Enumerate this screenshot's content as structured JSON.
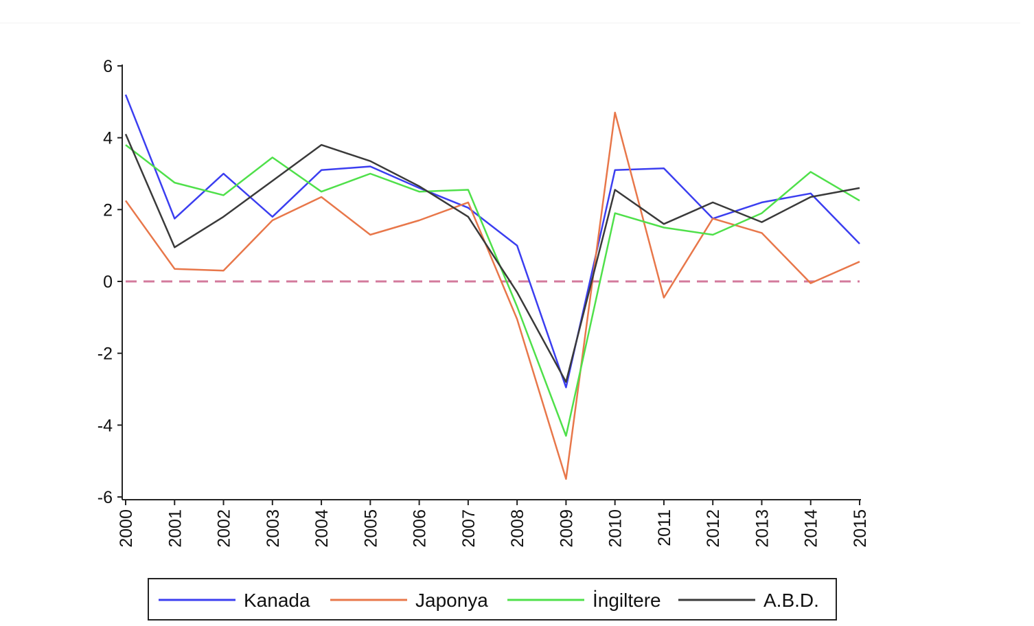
{
  "chart_data": {
    "type": "line",
    "title": "",
    "xlabel": "",
    "ylabel": "",
    "x": [
      "2000",
      "2001",
      "2002",
      "2003",
      "2004",
      "2005",
      "2006",
      "2007",
      "2008",
      "2009",
      "2010",
      "2011",
      "2012",
      "2013",
      "2014",
      "2015"
    ],
    "ylim": [
      -6,
      6
    ],
    "yticks": [
      6,
      4,
      2,
      0,
      -2,
      -4,
      -6
    ],
    "yticklabels": [
      "6",
      "4",
      "2",
      "0",
      "-2",
      "-4",
      "-6"
    ],
    "reference_line": {
      "y": 0,
      "style": "dashed",
      "color": "#d37a9c"
    },
    "legend_position": "bottom",
    "series": [
      {
        "name": "Kanada",
        "color": "#3b3ef0",
        "values": [
          5.2,
          1.75,
          3.0,
          1.8,
          3.1,
          3.2,
          2.6,
          2.05,
          1.0,
          -2.95,
          3.1,
          3.15,
          1.75,
          2.2,
          2.45,
          1.05
        ]
      },
      {
        "name": "Japonya",
        "color": "#e8774a",
        "values": [
          2.25,
          0.35,
          0.3,
          1.7,
          2.35,
          1.3,
          1.7,
          2.2,
          -1.05,
          -5.5,
          4.7,
          -0.45,
          1.75,
          1.35,
          -0.05,
          0.55
        ]
      },
      {
        "name": "İngiltere",
        "color": "#4fe04a",
        "values": [
          3.8,
          2.75,
          2.4,
          3.45,
          2.5,
          3.0,
          2.5,
          2.55,
          -0.7,
          -4.3,
          1.9,
          1.5,
          1.3,
          1.9,
          3.05,
          2.25
        ]
      },
      {
        "name": "A.B.D.",
        "color": "#3a3a3a",
        "values": [
          4.1,
          0.95,
          1.8,
          2.8,
          3.8,
          3.35,
          2.65,
          1.8,
          -0.3,
          -2.8,
          2.55,
          1.6,
          2.2,
          1.65,
          2.35,
          2.6
        ]
      }
    ]
  }
}
